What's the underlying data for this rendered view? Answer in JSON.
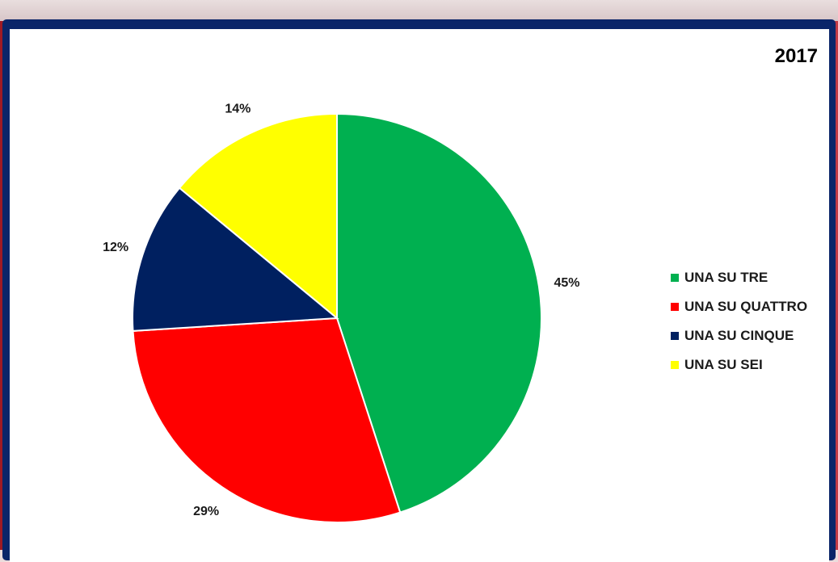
{
  "chart_data": {
    "type": "pie",
    "title": "2017",
    "categories": [
      "UNA SU TRE",
      "UNA SU QUATTRO",
      "UNA SU CINQUE",
      "UNA SU SEI"
    ],
    "values": [
      45,
      29,
      12,
      14
    ],
    "data_labels": [
      "45%",
      "29%",
      "12%",
      "14%"
    ],
    "colors": [
      "#00b050",
      "#ff0000",
      "#002060",
      "#ffff00"
    ],
    "legend_position": "right",
    "start_angle": "12 o'clock, clockwise"
  }
}
